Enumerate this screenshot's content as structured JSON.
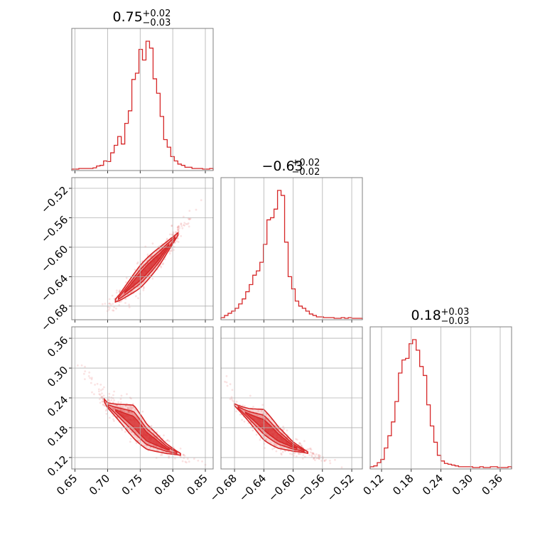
{
  "chart_data": {
    "type": "corner",
    "color": "#d62728",
    "parameters": [
      {
        "median": "0.75",
        "plus": "+0.02",
        "minus": "−0.03",
        "range": [
          0.645,
          0.862
        ],
        "ticks": [
          0.65,
          0.7,
          0.75,
          0.8,
          0.85
        ],
        "tick_labels": [
          "0.65",
          "0.70",
          "0.75",
          "0.80",
          "0.85"
        ]
      },
      {
        "median": "−0.63",
        "plus": "+0.02",
        "minus": "−0.02",
        "range": [
          -0.6985,
          -0.5055
        ],
        "ticks": [
          -0.68,
          -0.64,
          -0.6,
          -0.56,
          -0.52
        ],
        "tick_labels": [
          "−0.68",
          "−0.64",
          "−0.60",
          "−0.56",
          "−0.52"
        ]
      },
      {
        "median": "0.18",
        "plus": "+0.03",
        "minus": "−0.03",
        "range": [
          0.097,
          0.383
        ],
        "ticks": [
          0.12,
          0.18,
          0.24,
          0.3,
          0.36
        ],
        "tick_labels": [
          "0.12",
          "0.18",
          "0.24",
          "0.30",
          "0.36"
        ]
      }
    ],
    "histograms": [
      {
        "param": 0,
        "counts": [
          0,
          0,
          1,
          1,
          1,
          1,
          2,
          5,
          6,
          13,
          12,
          26,
          38,
          52,
          40,
          73,
          93,
          143,
          153,
          191,
          174,
          204,
          193,
          144,
          121,
          84,
          47,
          35,
          20,
          13,
          8,
          6,
          3,
          3,
          1,
          1,
          1,
          0,
          0,
          1
        ]
      },
      {
        "param": 1,
        "counts": [
          1,
          4,
          7,
          10,
          14,
          20,
          27,
          37,
          47,
          60,
          66,
          78,
          103,
          137,
          140,
          152,
          178,
          171,
          106,
          58,
          41,
          24,
          17,
          14,
          10,
          6,
          4,
          2,
          2,
          1,
          1,
          1,
          0,
          0,
          1,
          0,
          1,
          0,
          0,
          0
        ]
      },
      {
        "param": 2,
        "counts": [
          1,
          2,
          6,
          10,
          24,
          39,
          56,
          81,
          116,
          132,
          134,
          152,
          157,
          144,
          124,
          113,
          77,
          51,
          31,
          15,
          8,
          5,
          4,
          3,
          2,
          1,
          1,
          1,
          1,
          0,
          0,
          1,
          0,
          0,
          1,
          1,
          0,
          0,
          0,
          1
        ]
      }
    ],
    "pairs": [
      {
        "x_param": 0,
        "y_param": 1,
        "ridge": [
          [
            0.69,
            -0.688
          ],
          [
            0.72,
            -0.667
          ],
          [
            0.75,
            -0.64
          ],
          [
            0.78,
            -0.612
          ],
          [
            0.81,
            -0.58
          ],
          [
            0.84,
            -0.543
          ],
          [
            0.855,
            -0.52
          ]
        ],
        "width": [
          0.007,
          0.008,
          0.01,
          0.009,
          0.007,
          0.004,
          0.003
        ],
        "contour_range": [
          0.712,
          0.808
        ]
      },
      {
        "x_param": 0,
        "y_param": 2,
        "ridge": [
          [
            0.65,
            0.312
          ],
          [
            0.67,
            0.283
          ],
          [
            0.7,
            0.225
          ],
          [
            0.74,
            0.192
          ],
          [
            0.76,
            0.162
          ],
          [
            0.79,
            0.138
          ],
          [
            0.82,
            0.122
          ],
          [
            0.86,
            0.106
          ]
        ],
        "width": [
          0.006,
          0.008,
          0.012,
          0.022,
          0.016,
          0.01,
          0.006,
          0.004
        ],
        "contour_range": [
          0.695,
          0.812
        ]
      },
      {
        "x_param": 1,
        "y_param": 2,
        "ridge": [
          [
            -0.695,
            0.292
          ],
          [
            -0.68,
            0.226
          ],
          [
            -0.66,
            0.205
          ],
          [
            -0.64,
            0.186
          ],
          [
            -0.62,
            0.16
          ],
          [
            -0.6,
            0.142
          ],
          [
            -0.57,
            0.124
          ],
          [
            -0.53,
            0.104
          ]
        ],
        "width": [
          0.006,
          0.008,
          0.013,
          0.02,
          0.014,
          0.009,
          0.005,
          0.004
        ],
        "contour_range": [
          -0.68,
          -0.58
        ]
      }
    ],
    "title": "",
    "grid": true
  }
}
